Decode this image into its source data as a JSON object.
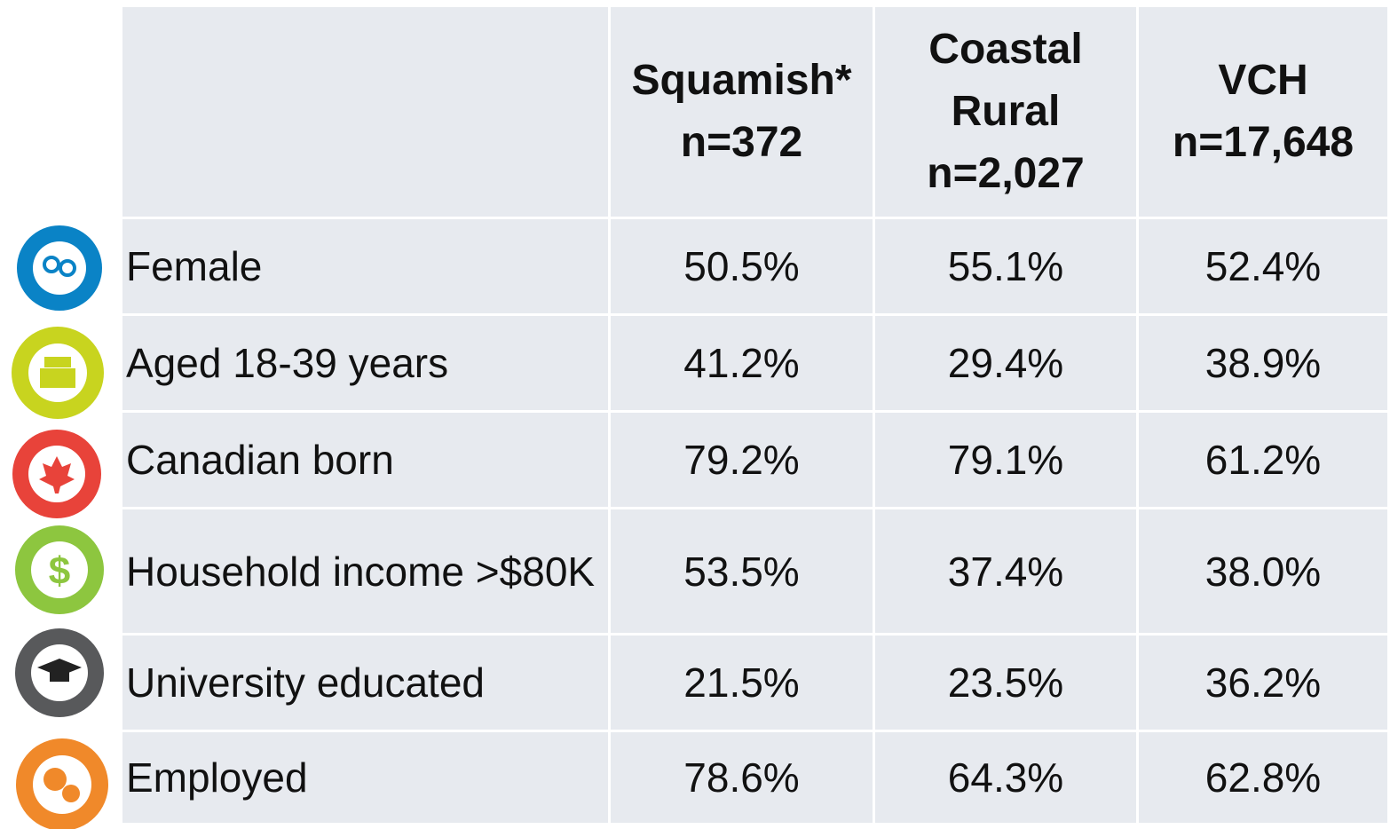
{
  "table": {
    "columns": [
      {
        "name": "Squamish*",
        "n": "n=372"
      },
      {
        "name": "Coastal Rural",
        "n": "n=2,027"
      },
      {
        "name": "VCH",
        "n": "n=17,648"
      }
    ],
    "rows": [
      {
        "label": "Female",
        "values": [
          "50.5%",
          "55.1%",
          "52.4%"
        ]
      },
      {
        "label": "Aged 18-39 years",
        "values": [
          "41.2%",
          "29.4%",
          "38.9%"
        ]
      },
      {
        "label": "Canadian born",
        "values": [
          "79.2%",
          "79.1%",
          "61.2%"
        ]
      },
      {
        "label": "Household income >$80K",
        "values": [
          "53.5%",
          "37.4%",
          "38.0%"
        ]
      },
      {
        "label": "University educated",
        "values": [
          "21.5%",
          "23.5%",
          "36.2%"
        ]
      },
      {
        "label": "Employed",
        "values": [
          "78.6%",
          "64.3%",
          "62.8%"
        ]
      }
    ]
  }
}
